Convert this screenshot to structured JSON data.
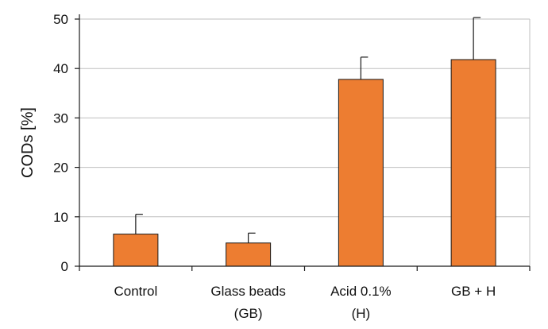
{
  "chart_data": {
    "type": "bar",
    "title": "",
    "xlabel": "",
    "ylabel": "CODs [%]",
    "ylim": [
      0,
      50
    ],
    "yticks": [
      0,
      10,
      20,
      30,
      40,
      50
    ],
    "grid": true,
    "legend": "none",
    "categories": [
      [
        "Control"
      ],
      [
        "Glass beads",
        "(GB)"
      ],
      [
        "Acid 0.1%",
        "(H)"
      ],
      [
        "GB + H"
      ]
    ],
    "values": [
      6.5,
      4.7,
      37.8,
      41.8
    ],
    "error_upper": [
      4.0,
      2.0,
      4.5,
      8.5
    ],
    "colors": {
      "bar": "#ed7d31",
      "bar_edge": "#1a1a1a",
      "grid": "#bfbfbf",
      "axis": "#1a1a1a"
    }
  }
}
